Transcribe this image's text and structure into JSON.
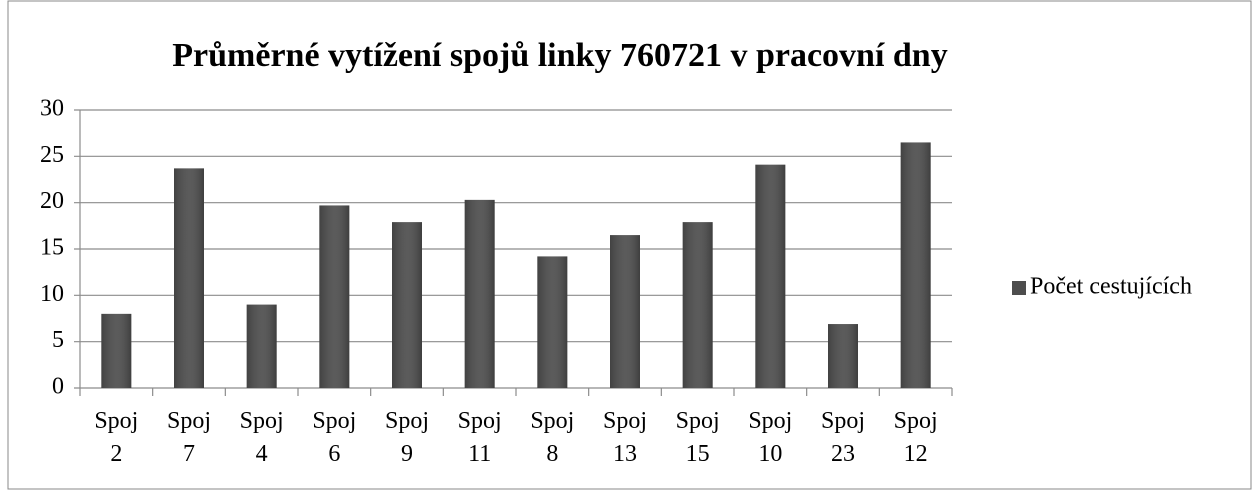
{
  "chart_data": {
    "type": "bar",
    "title": "Průměrné vytížení spojů linky 760721 v pracovní dny",
    "categories": [
      "Spoj 2",
      "Spoj 7",
      "Spoj 4",
      "Spoj 6",
      "Spoj 9",
      "Spoj 11",
      "Spoj 8",
      "Spoj 13",
      "Spoj 15",
      "Spoj 10",
      "Spoj 23",
      "Spoj 12"
    ],
    "series": [
      {
        "name": "Počet cestujících",
        "color": "#4d4d4d",
        "values": [
          8,
          23.7,
          9,
          19.7,
          17.9,
          20.3,
          14.2,
          16.5,
          17.9,
          24.1,
          6.9,
          26.5
        ]
      }
    ],
    "ylim": [
      0,
      30
    ],
    "yticks": [
      0,
      5,
      10,
      15,
      20,
      25,
      30
    ],
    "grid": true,
    "legend": "right"
  }
}
